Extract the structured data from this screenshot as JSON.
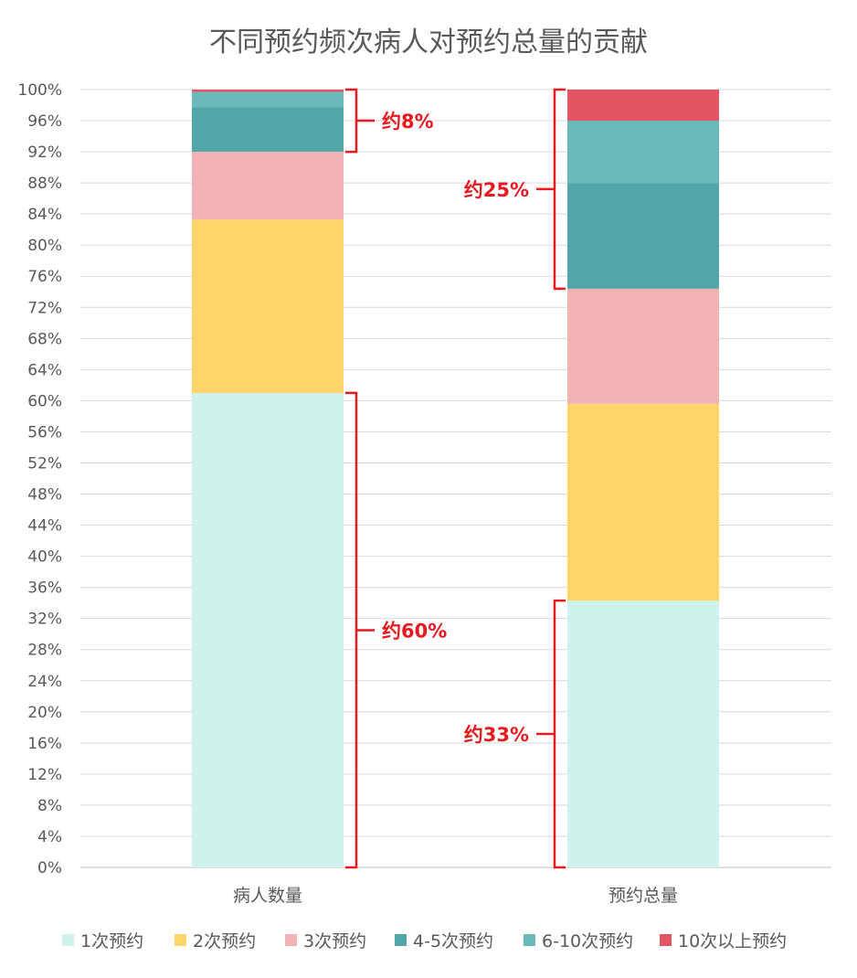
{
  "chart_data": {
    "type": "bar",
    "stacked": true,
    "title": "不同预约频次病人对预约总量的贡献",
    "categories": [
      "病人数量",
      "预约总量"
    ],
    "ylim": [
      0,
      100
    ],
    "yticks": [
      "0%",
      "4%",
      "8%",
      "12%",
      "16%",
      "20%",
      "24%",
      "28%",
      "32%",
      "36%",
      "40%",
      "44%",
      "48%",
      "52%",
      "56%",
      "60%",
      "64%",
      "68%",
      "72%",
      "76%",
      "80%",
      "84%",
      "88%",
      "92%",
      "96%",
      "100%"
    ],
    "grid": true,
    "legend_position": "bottom",
    "series": [
      {
        "name": "1次预约",
        "color": "#cff3ec",
        "values": [
          61.0,
          34.3
        ]
      },
      {
        "name": "2次预约",
        "color": "#fed56b",
        "values": [
          22.3,
          25.3
        ]
      },
      {
        "name": "3次预约",
        "color": "#f3b3b5",
        "values": [
          8.7,
          14.8
        ]
      },
      {
        "name": "4-5次预约",
        "color": "#51a7a7",
        "values": [
          5.7,
          13.6
        ]
      },
      {
        "name": "6-10次预约",
        "color": "#69bab8",
        "values": [
          2.0,
          8.0
        ]
      },
      {
        "name": "10次以上预约",
        "color": "#e35561",
        "values": [
          0.3,
          4.0
        ]
      }
    ],
    "annotations": [
      {
        "text": "约8%",
        "category": "病人数量",
        "from": 92,
        "to": 100,
        "side": "right"
      },
      {
        "text": "约60%",
        "category": "病人数量",
        "from": 0,
        "to": 61,
        "side": "right"
      },
      {
        "text": "约25%",
        "category": "预约总量",
        "from": 74.4,
        "to": 100,
        "side": "left"
      },
      {
        "text": "约33%",
        "category": "预约总量",
        "from": 0,
        "to": 34.3,
        "side": "left"
      }
    ],
    "annotation_color": "#e8191f"
  }
}
